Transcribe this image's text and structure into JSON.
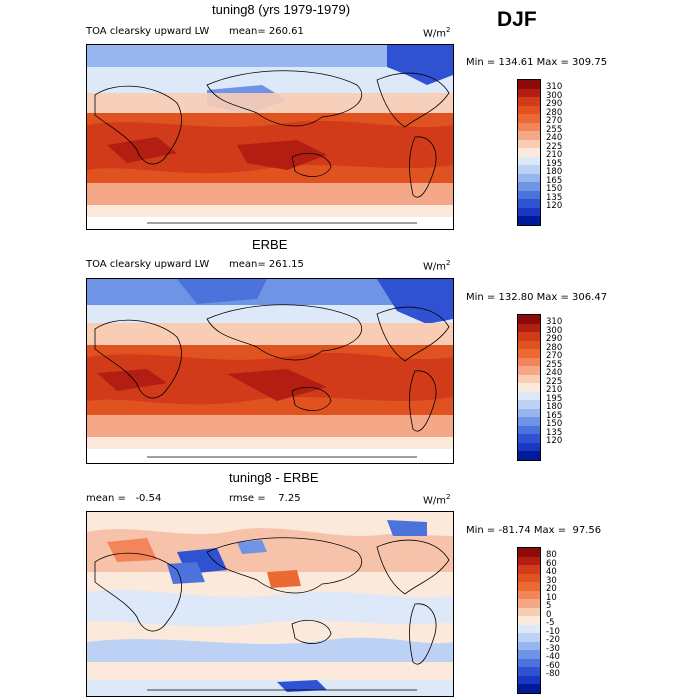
{
  "season": "DJF",
  "panels": [
    {
      "title": "tuning8 (yrs 1979-1979)",
      "label": "TOA clearsky upward LW",
      "mean": "mean= 260.61",
      "units": "W/m",
      "units_sup": "2",
      "minmax": "Min = 134.61 Max = 309.75",
      "scale": {
        "colors": [
          "#8c0a0a",
          "#b21f12",
          "#d13b1a",
          "#e0521f",
          "#eb6a33",
          "#f2865a",
          "#f5a888",
          "#f8cdb4",
          "#fbe9dc",
          "#dde8f8",
          "#bcd1f4",
          "#97b6ef",
          "#6f94e6",
          "#4c72dc",
          "#2f52d2",
          "#1a37c2",
          "#001a9a"
        ],
        "labels": [
          "310",
          "300",
          "290",
          "280",
          "270",
          "255",
          "240",
          "225",
          "210",
          "195",
          "180",
          "165",
          "150",
          "135",
          "120"
        ]
      }
    },
    {
      "title": "ERBE",
      "label": "TOA clearsky upward LW",
      "mean": "mean= 261.15",
      "units": "W/m",
      "units_sup": "2",
      "minmax": "Min = 132.80 Max = 306.47",
      "scale": {
        "colors": [
          "#8c0a0a",
          "#b21f12",
          "#d13b1a",
          "#e0521f",
          "#eb6a33",
          "#f2865a",
          "#f5a888",
          "#f8cdb4",
          "#fbe9dc",
          "#dde8f8",
          "#bcd1f4",
          "#97b6ef",
          "#6f94e6",
          "#4c72dc",
          "#2f52d2",
          "#1a37c2",
          "#001a9a"
        ],
        "labels": [
          "310",
          "300",
          "290",
          "280",
          "270",
          "255",
          "240",
          "225",
          "210",
          "195",
          "180",
          "165",
          "150",
          "135",
          "120"
        ]
      }
    },
    {
      "title": "tuning8 - ERBE",
      "mean": "mean =   -0.54",
      "rmse": "rmse =    7.25",
      "units": "W/m",
      "units_sup": "2",
      "minmax": "Min = -81.74 Max =  97.56",
      "scale": {
        "colors": [
          "#8c0a0a",
          "#b21f12",
          "#d13b1a",
          "#e0521f",
          "#eb6a33",
          "#f2865a",
          "#f5a888",
          "#f8cdb4",
          "#fbe9dc",
          "#dde8f8",
          "#bcd1f4",
          "#97b6ef",
          "#6f94e6",
          "#4c72dc",
          "#2f52d2",
          "#1a37c2",
          "#001a9a"
        ],
        "labels": [
          "80",
          "60",
          "40",
          "30",
          "20",
          "10",
          "5",
          "0",
          "-5",
          "-10",
          "-20",
          "-30",
          "-40",
          "-60",
          "-80"
        ]
      }
    }
  ]
}
